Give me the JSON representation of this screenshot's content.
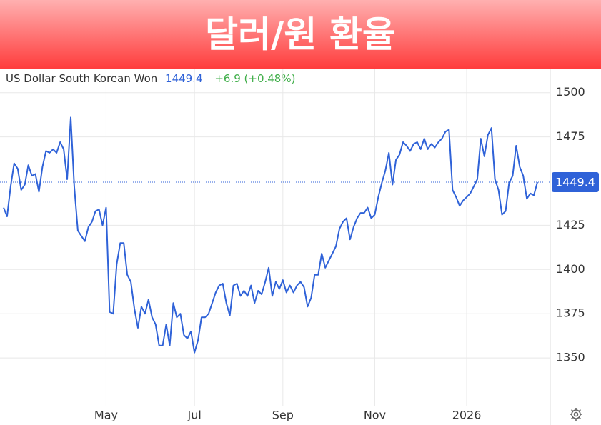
{
  "chart_data": {
    "type": "line",
    "title": "달러/원 환율",
    "subtitle": "US Dollar South Korean Won",
    "change": "+6.9 (+0.48%)",
    "categories": [
      null,
      null,
      null,
      null,
      null,
      null,
      null,
      null,
      null,
      null,
      null,
      null,
      null,
      null,
      null,
      null,
      null,
      null,
      null,
      null,
      null,
      null,
      null,
      null,
      null,
      null,
      null,
      null,
      null,
      "May",
      null,
      null,
      null,
      null,
      null,
      null,
      null,
      null,
      null,
      null,
      null,
      null,
      null,
      null,
      null,
      null,
      null,
      null,
      null,
      null,
      null,
      null,
      null,
      null,
      "Jul",
      null,
      null,
      null,
      null,
      null,
      null,
      null,
      null,
      null,
      null,
      null,
      null,
      null,
      null,
      null,
      null,
      null,
      null,
      null,
      null,
      null,
      null,
      null,
      null,
      "Sep",
      null,
      null,
      null,
      null,
      null,
      null,
      null,
      null,
      null,
      null,
      null,
      null,
      null,
      null,
      null,
      null,
      null,
      null,
      null,
      null,
      null,
      null,
      null,
      null,
      null,
      "Nov",
      null,
      null,
      null,
      null,
      null,
      null,
      null,
      null,
      null,
      null,
      null,
      null,
      null,
      null,
      null,
      null,
      null,
      null,
      null,
      null,
      null,
      null,
      null,
      null,
      null,
      "2026",
      null,
      null,
      null,
      null,
      null,
      null,
      null,
      null,
      null,
      null,
      null,
      null,
      null,
      null,
      null,
      null,
      null,
      null,
      null,
      null
    ],
    "values": [
      1435,
      1430,
      1447,
      1460,
      1457,
      1445,
      1448,
      1459,
      1453,
      1454,
      1444,
      1458,
      1467,
      1466,
      1468,
      1466,
      1472,
      1468,
      1451,
      1486,
      1447,
      1422,
      1419,
      1416,
      1424,
      1427,
      1433,
      1434,
      1425,
      1435,
      1376,
      1375,
      1403,
      1415,
      1415,
      1397,
      1393,
      1378,
      1367,
      1379,
      1375,
      1383,
      1373,
      1369,
      1357,
      1357,
      1369,
      1357,
      1381,
      1373,
      1375,
      1363,
      1361,
      1365,
      1353,
      1360,
      1373,
      1373,
      1375,
      1381,
      1387,
      1391,
      1392,
      1381,
      1374,
      1391,
      1392,
      1385,
      1388,
      1385,
      1391,
      1381,
      1388,
      1386,
      1393,
      1401,
      1385,
      1393,
      1389,
      1394,
      1387,
      1391,
      1387,
      1391,
      1393,
      1390,
      1379,
      1384,
      1397,
      1397,
      1409,
      1401,
      1405,
      1409,
      1413,
      1423,
      1427,
      1429,
      1417,
      1424,
      1429,
      1432,
      1432,
      1435,
      1429,
      1431,
      1441,
      1449,
      1456,
      1466,
      1448,
      1462,
      1465,
      1472,
      1470,
      1467,
      1471,
      1472,
      1468,
      1474,
      1468,
      1471,
      1469,
      1472,
      1474,
      1478,
      1479,
      1445,
      1441,
      1436,
      1439,
      1441,
      1443,
      1447,
      1451,
      1474,
      1464,
      1476,
      1480,
      1451,
      1445,
      1431,
      1433,
      1449,
      1453,
      1470,
      1458,
      1453,
      1440,
      1443,
      1442,
      1449.4
    ],
    "color": "#2f62d8",
    "change_color": "#3fae49",
    "ylim": [
      1325,
      1512
    ],
    "yticks": [
      1350,
      1375,
      1400,
      1425,
      1450,
      1475,
      1500
    ],
    "grid": true
  }
}
